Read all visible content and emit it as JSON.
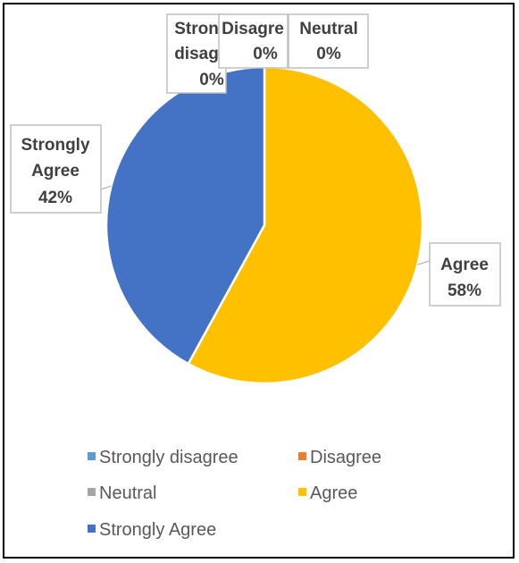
{
  "chart_data": {
    "type": "pie",
    "categories": [
      "Strongly disagree",
      "Disagree",
      "Neutral",
      "Agree",
      "Strongly Agree"
    ],
    "values": [
      0,
      0,
      0,
      58,
      42
    ],
    "unit": "%",
    "colors": [
      "#5b9bd5",
      "#ed7d31",
      "#a5a5a5",
      "#ffc000",
      "#4472c4"
    ],
    "data_labels": [
      {
        "category": "Stron",
        "category_line2": "disag",
        "value": "0%"
      },
      {
        "category": "Disagre",
        "value": "0%"
      },
      {
        "category": "Neutral",
        "value": "0%"
      },
      {
        "category": "Agree",
        "value": "58%"
      },
      {
        "category": "Strongly",
        "category_line2": "Agree",
        "value": "42%"
      }
    ],
    "legend": {
      "position": "bottom",
      "entries": [
        "Strongly disagree",
        "Disagree",
        "Neutral",
        "Agree",
        "Strongly Agree"
      ]
    },
    "title": "",
    "xlabel": "",
    "ylabel": ""
  }
}
